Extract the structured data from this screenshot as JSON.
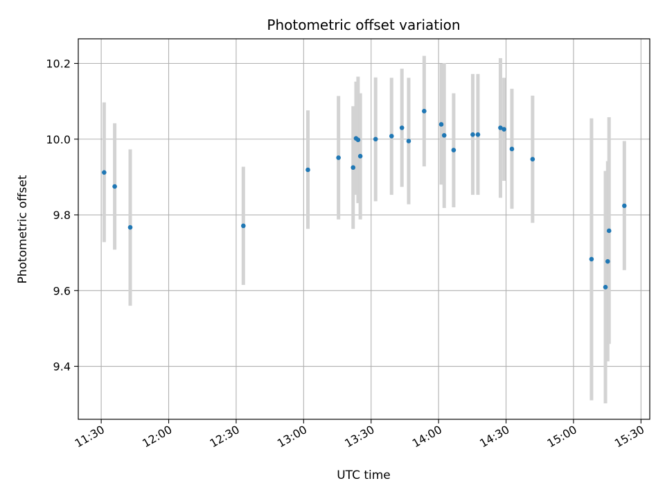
{
  "chart_data": {
    "type": "scatter",
    "title": "Photometric offset variation",
    "xlabel": "UTC time",
    "ylabel": "Photometric offset",
    "x_ticks": [
      "11:30",
      "12:00",
      "12:30",
      "13:00",
      "13:30",
      "14:00",
      "14:30",
      "15:00",
      "15:30"
    ],
    "y_ticks": [
      9.4,
      9.6,
      9.8,
      10.0,
      10.2
    ],
    "xlim": [
      "11:19.8",
      "15:33.9"
    ],
    "ylim": [
      9.26,
      10.265
    ],
    "grid": true,
    "colors": {
      "point": "#1f77b4",
      "errorbar": "#d3d3d3",
      "grid": "#b0b0b0"
    },
    "series": [
      {
        "points": [
          {
            "x": "11:31.3",
            "y": 9.912,
            "ylow": 9.728,
            "yhigh": 10.097
          },
          {
            "x": "11:36.0",
            "y": 9.875,
            "ylow": 9.708,
            "yhigh": 10.042
          },
          {
            "x": "11:42.9",
            "y": 9.767,
            "ylow": 9.56,
            "yhigh": 9.973
          },
          {
            "x": "12:33.2",
            "y": 9.771,
            "ylow": 9.615,
            "yhigh": 9.927
          },
          {
            "x": "13:01.9",
            "y": 9.919,
            "ylow": 9.763,
            "yhigh": 10.076
          },
          {
            "x": "13:15.5",
            "y": 9.951,
            "ylow": 9.788,
            "yhigh": 10.114
          },
          {
            "x": "13:22.0",
            "y": 9.925,
            "ylow": 9.763,
            "yhigh": 10.087
          },
          {
            "x": "13:23.3",
            "y": 10.002,
            "ylow": 9.853,
            "yhigh": 10.152
          },
          {
            "x": "13:24.2",
            "y": 9.998,
            "ylow": 9.831,
            "yhigh": 10.165
          },
          {
            "x": "13:25.2",
            "y": 9.955,
            "ylow": 9.788,
            "yhigh": 10.121
          },
          {
            "x": "13:32.0",
            "y": 10.0,
            "ylow": 9.836,
            "yhigh": 10.163
          },
          {
            "x": "13:39.1",
            "y": 10.008,
            "ylow": 9.853,
            "yhigh": 10.162
          },
          {
            "x": "13:43.7",
            "y": 10.03,
            "ylow": 9.874,
            "yhigh": 10.186
          },
          {
            "x": "13:46.7",
            "y": 9.995,
            "ylow": 9.828,
            "yhigh": 10.162
          },
          {
            "x": "13:53.6",
            "y": 10.074,
            "ylow": 9.928,
            "yhigh": 10.22
          },
          {
            "x": "14:01.2",
            "y": 10.039,
            "ylow": 9.88,
            "yhigh": 10.199
          },
          {
            "x": "14:02.5",
            "y": 10.01,
            "ylow": 9.818,
            "yhigh": 10.201
          },
          {
            "x": "14:06.7",
            "y": 9.971,
            "ylow": 9.82,
            "yhigh": 10.121
          },
          {
            "x": "14:15.2",
            "y": 10.012,
            "ylow": 9.853,
            "yhigh": 10.172
          },
          {
            "x": "14:17.5",
            "y": 10.012,
            "ylow": 9.853,
            "yhigh": 10.172
          },
          {
            "x": "14:27.5",
            "y": 10.03,
            "ylow": 9.845,
            "yhigh": 10.214
          },
          {
            "x": "14:29.1",
            "y": 10.026,
            "ylow": 9.89,
            "yhigh": 10.162
          },
          {
            "x": "14:32.6",
            "y": 9.974,
            "ylow": 9.816,
            "yhigh": 10.133
          },
          {
            "x": "14:41.8",
            "y": 9.947,
            "ylow": 9.779,
            "yhigh": 10.115
          },
          {
            "x": "15:08.0",
            "y": 9.683,
            "ylow": 9.31,
            "yhigh": 10.055
          },
          {
            "x": "15:14.2",
            "y": 9.609,
            "ylow": 9.302,
            "yhigh": 9.916
          },
          {
            "x": "15:15.2",
            "y": 9.677,
            "ylow": 9.413,
            "yhigh": 9.942
          },
          {
            "x": "15:15.8",
            "y": 9.758,
            "ylow": 9.459,
            "yhigh": 10.058
          },
          {
            "x": "15:22.6",
            "y": 9.824,
            "ylow": 9.654,
            "yhigh": 9.995
          }
        ]
      }
    ]
  }
}
